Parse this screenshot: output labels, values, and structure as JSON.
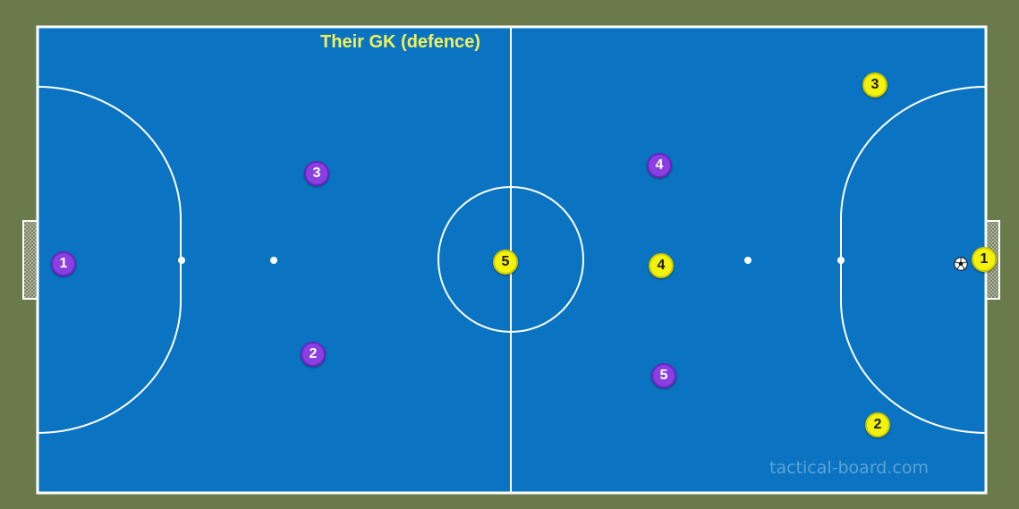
{
  "title": "Their GK (defence)",
  "watermark": "tactical-board.com",
  "colors": {
    "background": "#6b7a4b",
    "pitch": "#0a74c2",
    "lines": "#ffffff",
    "team_purple": "#8a3fe0",
    "team_yellow": "#f3f20c",
    "title": "#f2f05a"
  },
  "players": {
    "purple": [
      "1",
      "3",
      "2",
      "4",
      "5"
    ],
    "yellow": [
      "3",
      "5",
      "4",
      "1",
      "2"
    ]
  },
  "ball": "soccer-ball-icon"
}
